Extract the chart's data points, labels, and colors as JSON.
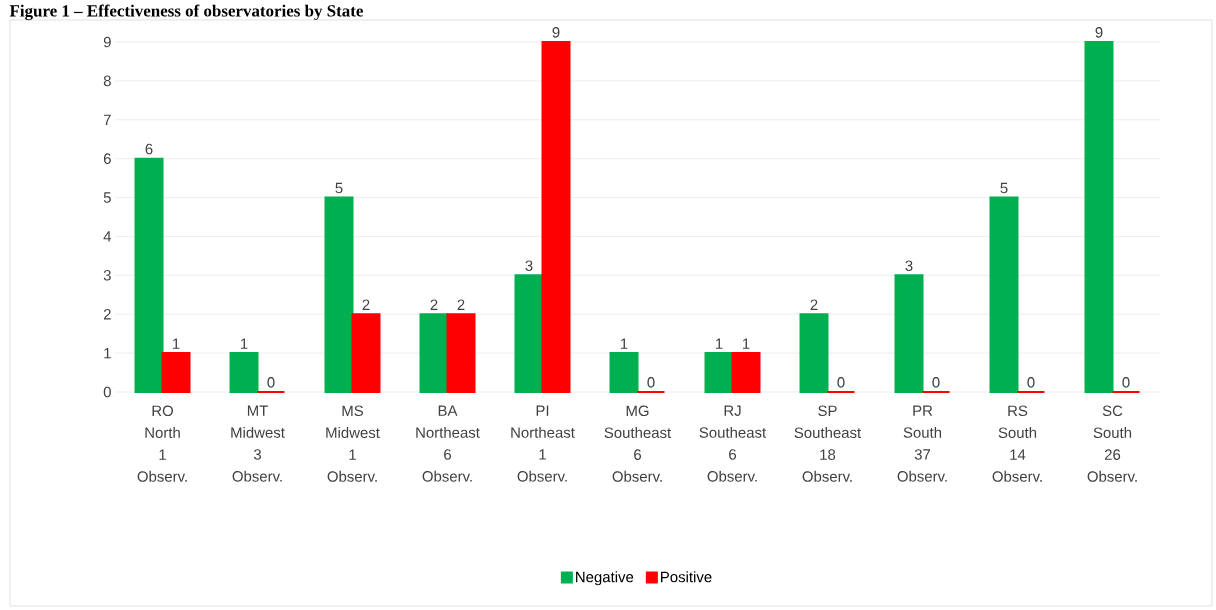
{
  "chart_data": {
    "type": "bar",
    "title": "Figure 1 – Effectiveness of observatories by State",
    "categories": [
      "RO North 1 Observ.",
      "MT Midwest 3 Observ.",
      "MS Midwest 1 Observ.",
      "BA Northeast 6 Observ.",
      "PI Northeast 1 Observ.",
      "MG Southeast 6 Observ.",
      "RJ Southeast 6 Observ.",
      "SP Southeast 18 Observ.",
      "PR South 37 Observ.",
      "RS South 14 Observ.",
      "SC South 26 Observ."
    ],
    "series": [
      {
        "name": "Negative",
        "color": "#00b050",
        "values": [
          6,
          1,
          5,
          2,
          3,
          1,
          1,
          2,
          3,
          5,
          9
        ]
      },
      {
        "name": "Positive",
        "color": "#ff0000",
        "values": [
          1,
          0,
          2,
          2,
          9,
          0,
          1,
          0,
          0,
          0,
          0
        ]
      }
    ],
    "ylim": [
      0,
      9
    ],
    "yticks": [
      0,
      1,
      2,
      3,
      4,
      5,
      6,
      7,
      8,
      9
    ],
    "grid": "y",
    "legend": "bottom",
    "data_labels": true
  }
}
